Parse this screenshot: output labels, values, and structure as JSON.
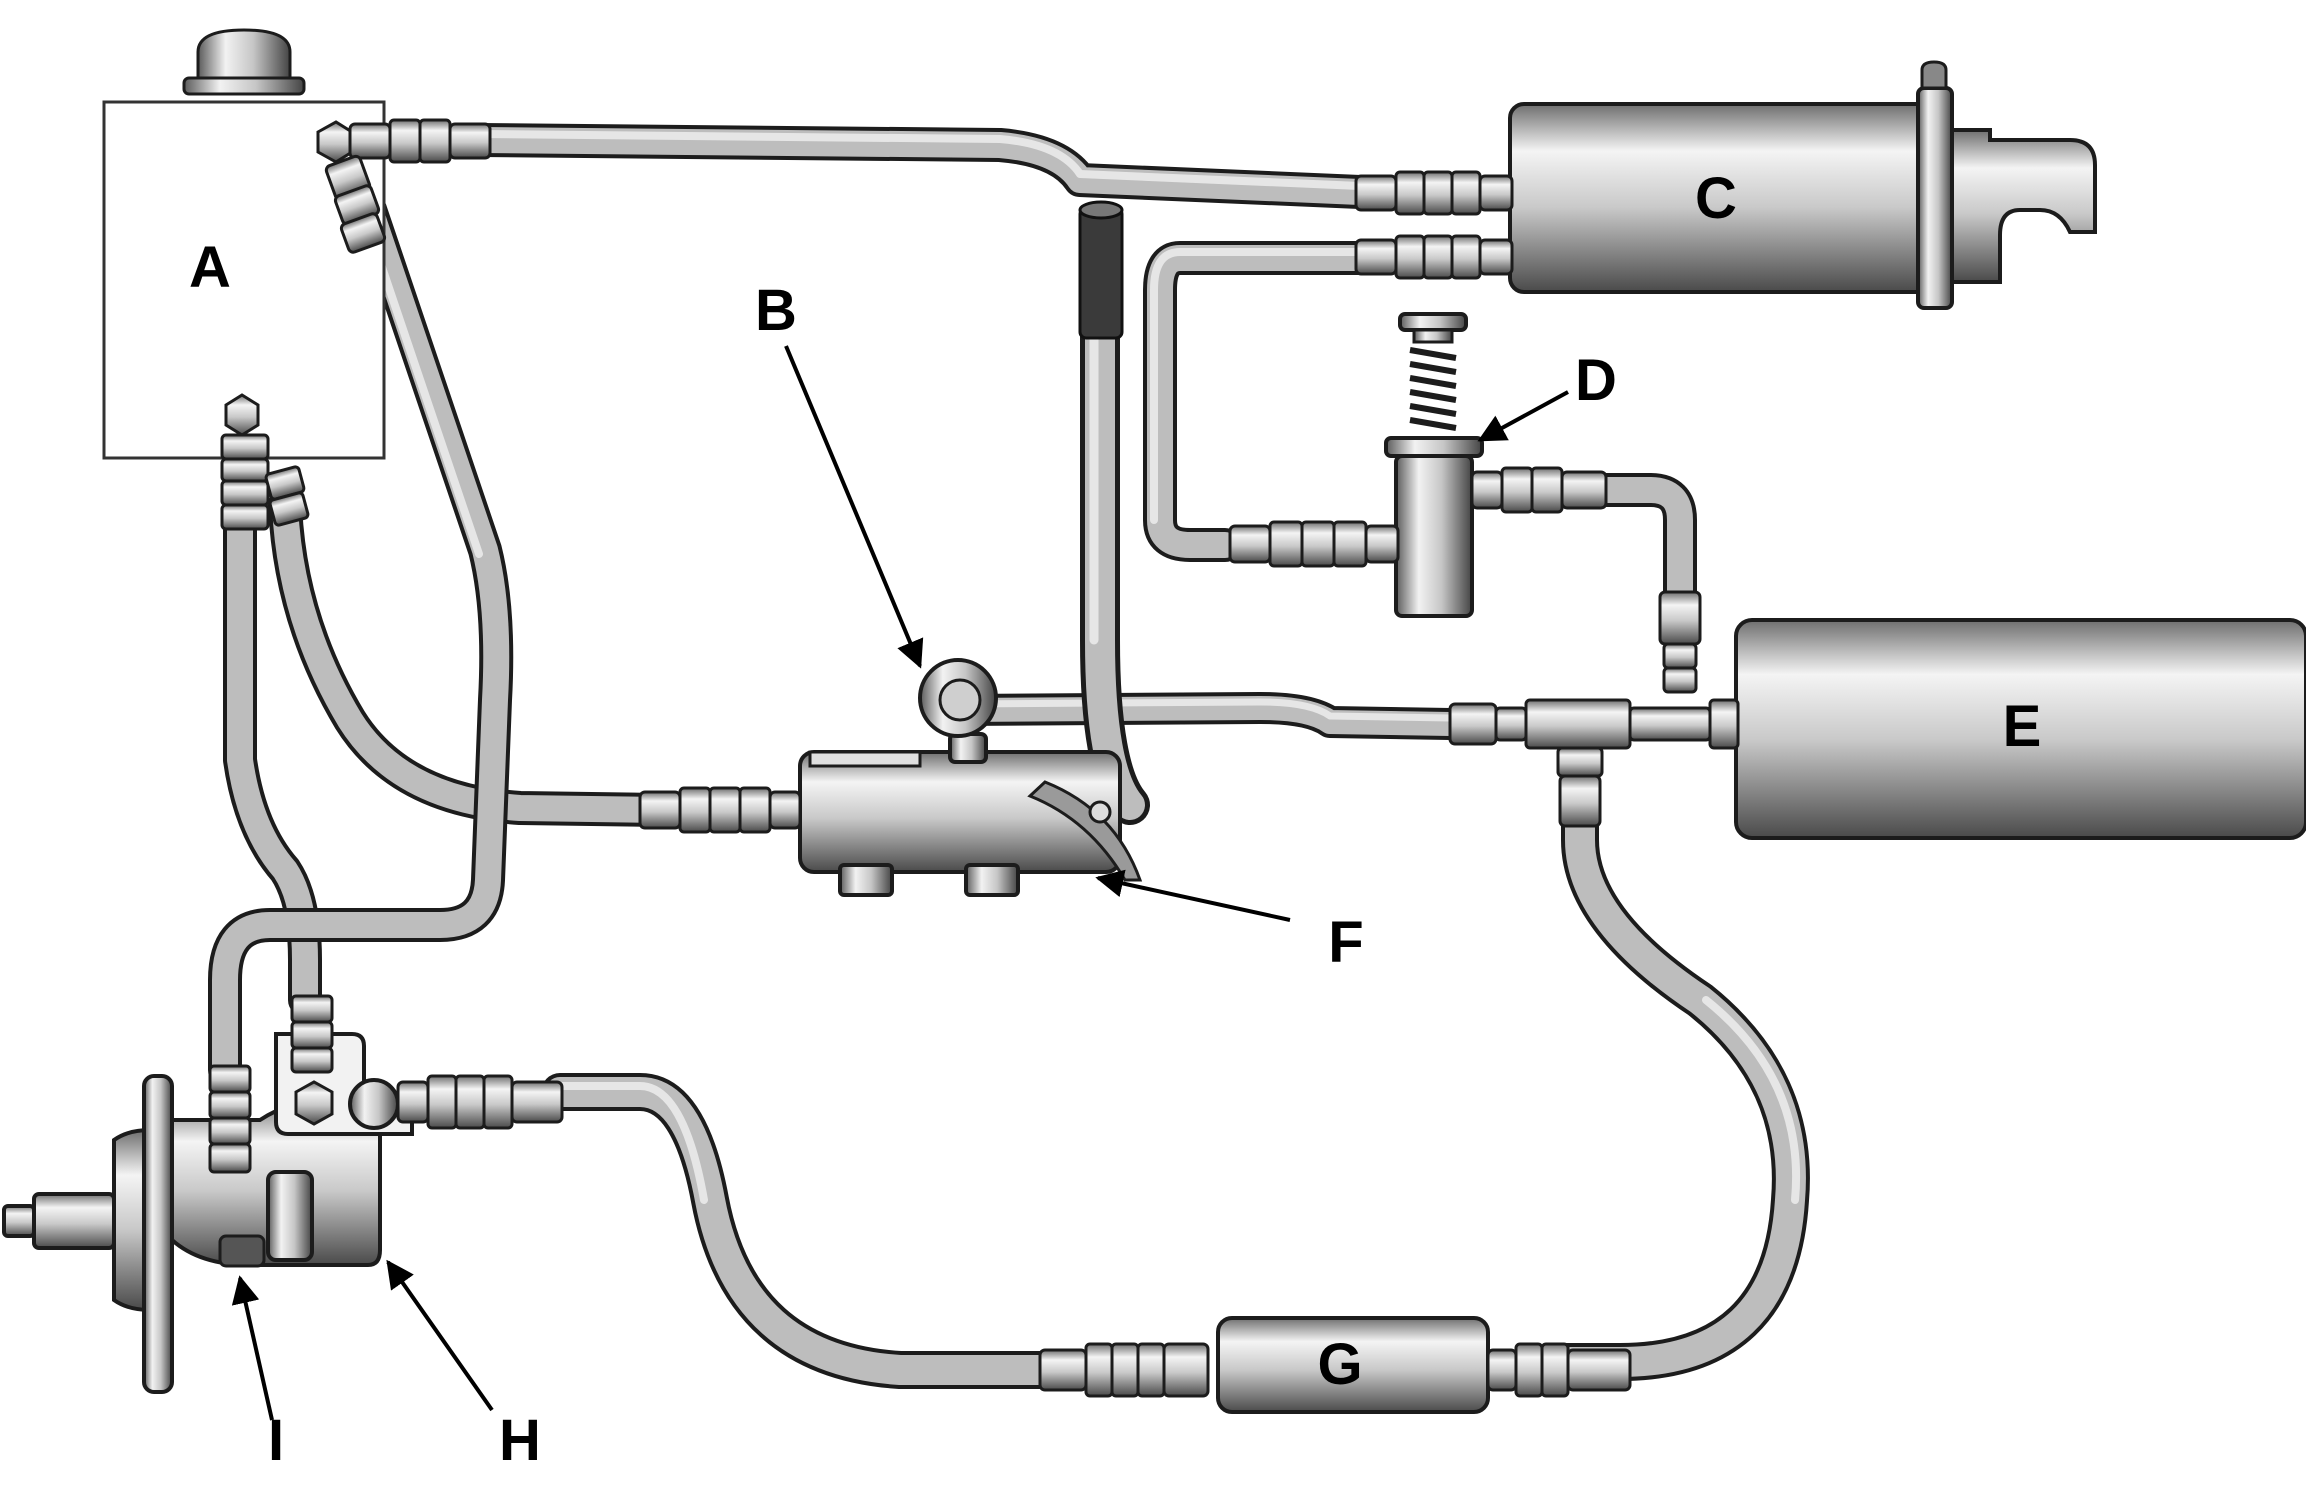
{
  "labels": {
    "a": "A",
    "b": "B",
    "c": "C",
    "d": "D",
    "e": "E",
    "f": "F",
    "g": "G",
    "h": "H",
    "i": "I"
  }
}
